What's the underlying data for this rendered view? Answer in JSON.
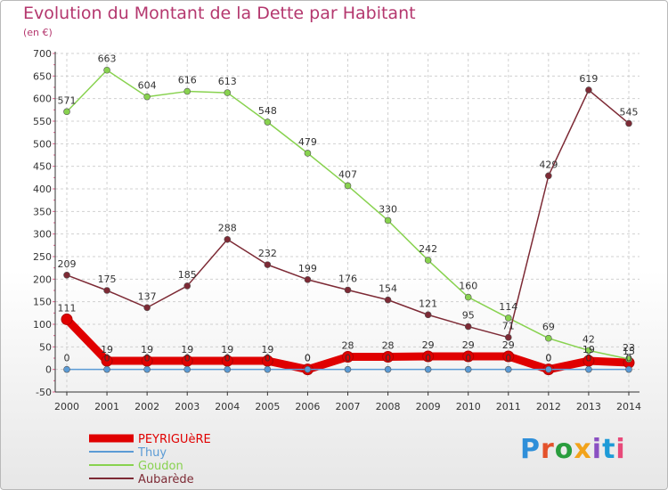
{
  "title": "Evolution du Montant de la Dette par Habitant",
  "unit_label": "(en €)",
  "logo": "Proxiti",
  "logo_colors": [
    "#2f8fd9",
    "#e4522b",
    "#2a9d3e",
    "#f2a31b",
    "#8a4fc2",
    "#1e9bd7",
    "#e84a7a"
  ],
  "chart_data": {
    "type": "line",
    "x": [
      "2000",
      "2001",
      "2002",
      "2003",
      "2004",
      "2005",
      "2006",
      "2007",
      "2008",
      "2009",
      "2010",
      "2011",
      "2012",
      "2013",
      "2014"
    ],
    "ylim": [
      -50,
      700
    ],
    "yticks": [
      -50,
      0,
      50,
      100,
      150,
      200,
      250,
      300,
      350,
      400,
      450,
      500,
      550,
      600,
      650,
      700
    ],
    "grid": true,
    "legend_position": "bottom-left",
    "series": [
      {
        "name": "PEYRIGUèRE",
        "color": "#e00000",
        "values": [
          111,
          19,
          19,
          19,
          19,
          19,
          0,
          28,
          28,
          29,
          29,
          29,
          0,
          19,
          15
        ]
      },
      {
        "name": "Thuy",
        "color": "#5b9bd5",
        "values": [
          0,
          0,
          0,
          0,
          0,
          0,
          0,
          0,
          0,
          0,
          0,
          0,
          0,
          0,
          0
        ]
      },
      {
        "name": "Goudon",
        "color": "#88d24f",
        "values": [
          571,
          663,
          604,
          616,
          613,
          548,
          479,
          407,
          330,
          242,
          160,
          114,
          69,
          42,
          23
        ]
      },
      {
        "name": "Aubarède",
        "color": "#7d2a35",
        "values": [
          209,
          175,
          137,
          185,
          288,
          232,
          199,
          176,
          154,
          121,
          95,
          71,
          429,
          619,
          545
        ]
      }
    ]
  }
}
